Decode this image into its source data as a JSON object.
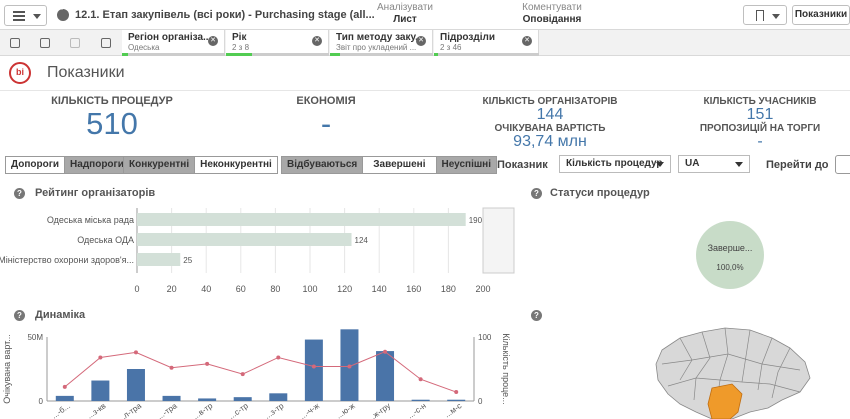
{
  "header": {
    "app_title": "12.1. Етап закупівель (всі роки) - Purchasing stage (all...",
    "tab_analyze_mode": "Аналізувати",
    "tab_analyze_sub": "Лист",
    "tab_narrate_mode": "Коментувати",
    "tab_narrate_sub": "Оповідання",
    "sheets_label": "Показники"
  },
  "selections": [
    {
      "name": "Регіон організа...",
      "value": "Одеська"
    },
    {
      "name": "Рік",
      "value": "2 з 8"
    },
    {
      "name": "Тип методу заку...",
      "value": "Звіт про укладений ..."
    },
    {
      "name": "Підрозділи",
      "value": "2 з 46"
    }
  ],
  "sheet_title": "Показники",
  "kpis": {
    "procedures_label": "КІЛЬКІСТЬ ПРОЦЕДУР",
    "procedures_value": "510",
    "economy_label": "ЕКОНОМІЯ",
    "economy_value": "-",
    "organizers_label": "КІЛЬКІСТЬ ОРГАНІЗАТОРІВ",
    "organizers_value": "144",
    "expected_label": "ОЧІКУВАНА ВАРТІСТЬ",
    "expected_value": "93,74 млн",
    "participants_label": "КІЛЬКІСТЬ УЧАСНИКІВ",
    "participants_value": "151",
    "offers_label": "ПРОПОЗИЦІЙ НА ТОРГИ",
    "offers_value": "-"
  },
  "filters": {
    "threshold": [
      "Допороги",
      "Надпороги"
    ],
    "competition": [
      "Конкурентні",
      "Неконкурентні"
    ],
    "status": [
      "Відбуваються",
      "Завершені",
      "Неуспішні"
    ],
    "indicator_label": "Показник",
    "indicator_value": "Кількість процедур",
    "lang_value": "UA",
    "goto_label": "Перейти до"
  },
  "rating_panel": {
    "title": "Рейтинг організаторів"
  },
  "status_panel": {
    "title": "Статуси процедур"
  },
  "dynamics_panel": {
    "title": "Динаміка"
  },
  "help_glyph": "?",
  "chart_data": [
    {
      "type": "bar",
      "orientation": "horizontal",
      "categories": [
        "Одеська міська рада",
        "Одеська ОДА",
        "Міністерство охорони здоров'я..."
      ],
      "values": [
        190,
        124,
        25
      ],
      "xlim": [
        0,
        200
      ],
      "xticks": [
        "0",
        "20",
        "40",
        "60",
        "80",
        "100",
        "120",
        "140",
        "160",
        "180",
        "200"
      ],
      "grid": true,
      "color": "#d3e0d8"
    },
    {
      "type": "pie",
      "slices": [
        {
          "label": "Заверше...",
          "value": 100,
          "display": "100,0%"
        }
      ],
      "color": "#c8dcc8"
    },
    {
      "type": "bar",
      "combo": "bar+line",
      "ylabel_left": "Очікувана варт...",
      "ylabel_right": "Кількість проце...",
      "yticks_left": [
        "0",
        "50M"
      ],
      "yticks_right": [
        "0",
        "100"
      ],
      "categories": [
        "...-б...",
        "...з-кв",
        "...л-тра",
        "...-тра",
        "...в-тр",
        "...с-тр",
        "...з-тр",
        "...-ч-ж",
        "...ю-ж",
        "...ж-гру",
        "...-с-н",
        "...м-с"
      ],
      "series": [
        {
          "type": "bar",
          "color": "#4a74a8",
          "values": [
            4,
            16,
            25,
            4,
            2,
            3,
            6,
            48,
            56,
            39,
            1,
            1
          ]
        },
        {
          "type": "line",
          "color": "#d4697a",
          "values": [
            22,
            68,
            76,
            52,
            58,
            42,
            68,
            54,
            54,
            77,
            34,
            14
          ]
        }
      ],
      "ylim_bar": [
        0,
        50
      ],
      "ylim_line": [
        0,
        100
      ]
    }
  ]
}
